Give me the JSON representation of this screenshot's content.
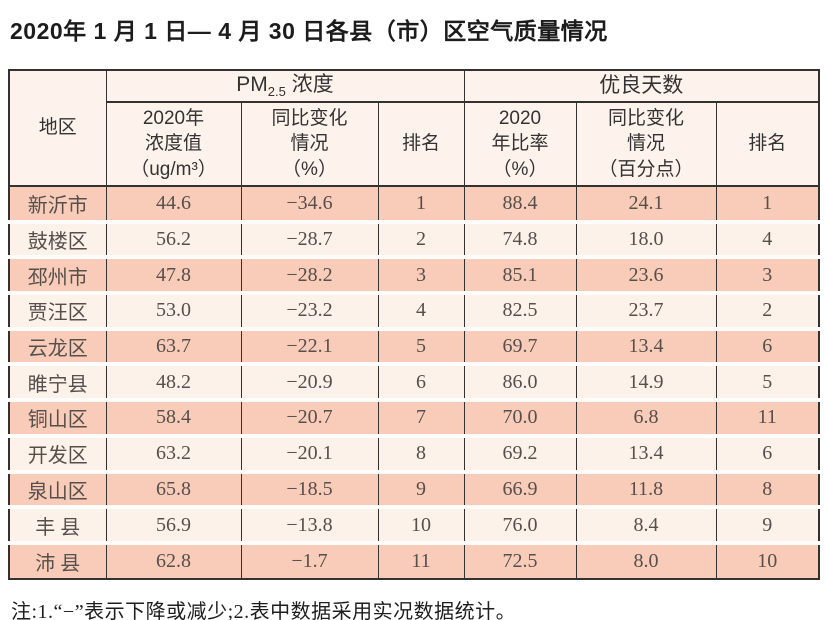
{
  "title": "2020年 1 月 1 日— 4 月 30 日各县（市）区空气质量情况",
  "table": {
    "region_header": "地区",
    "group_pm": {
      "base": "PM",
      "sub": "2.5",
      "rest": " 浓度"
    },
    "group_good": "优良天数",
    "sub_headers": {
      "pm_value": "2020年\n浓度值\n（ug/m³）",
      "pm_change": "同比变化\n情况\n（%）",
      "pm_rank": "排名",
      "good_ratio": "2020\n年比率\n（%）",
      "good_change": "同比变化\n情况\n（百分点）",
      "good_rank": "排名"
    },
    "rows": [
      {
        "region": "新沂市",
        "pm_value": "44.6",
        "pm_change": "−34.6",
        "pm_rank": "1",
        "good_ratio": "88.4",
        "good_change": "24.1",
        "good_rank": "1"
      },
      {
        "region": "鼓楼区",
        "pm_value": "56.2",
        "pm_change": "−28.7",
        "pm_rank": "2",
        "good_ratio": "74.8",
        "good_change": "18.0",
        "good_rank": "4"
      },
      {
        "region": "邳州市",
        "pm_value": "47.8",
        "pm_change": "−28.2",
        "pm_rank": "3",
        "good_ratio": "85.1",
        "good_change": "23.6",
        "good_rank": "3"
      },
      {
        "region": "贾汪区",
        "pm_value": "53.0",
        "pm_change": "−23.2",
        "pm_rank": "4",
        "good_ratio": "82.5",
        "good_change": "23.7",
        "good_rank": "2"
      },
      {
        "region": "云龙区",
        "pm_value": "63.7",
        "pm_change": "−22.1",
        "pm_rank": "5",
        "good_ratio": "69.7",
        "good_change": "13.4",
        "good_rank": "6"
      },
      {
        "region": "睢宁县",
        "pm_value": "48.2",
        "pm_change": "−20.9",
        "pm_rank": "6",
        "good_ratio": "86.0",
        "good_change": "14.9",
        "good_rank": "5"
      },
      {
        "region": "铜山区",
        "pm_value": "58.4",
        "pm_change": "−20.7",
        "pm_rank": "7",
        "good_ratio": "70.0",
        "good_change": "6.8",
        "good_rank": "11"
      },
      {
        "region": "开发区",
        "pm_value": "63.2",
        "pm_change": "−20.1",
        "pm_rank": "8",
        "good_ratio": "69.2",
        "good_change": "13.4",
        "good_rank": "6"
      },
      {
        "region": "泉山区",
        "pm_value": "65.8",
        "pm_change": "−18.5",
        "pm_rank": "9",
        "good_ratio": "66.9",
        "good_change": "11.8",
        "good_rank": "8"
      },
      {
        "region": "丰 县",
        "pm_value": "56.9",
        "pm_change": "−13.8",
        "pm_rank": "10",
        "good_ratio": "76.0",
        "good_change": "8.4",
        "good_rank": "9"
      },
      {
        "region": "沛 县",
        "pm_value": "62.8",
        "pm_change": "−1.7",
        "pm_rank": "11",
        "good_ratio": "72.5",
        "good_change": "8.0",
        "good_rank": "10"
      }
    ]
  },
  "footnote": "注:1.“−”表示下降或减少;2.表中数据采用实况数据统计。",
  "colors": {
    "row-salmon": "#f8ccb9",
    "row-light": "#fdf2ea",
    "header-bg": "#fdf3ec",
    "border-dark": "#343230",
    "gap-line": "#fffdfb",
    "text-data": "#564f4b",
    "text-header": "#333333",
    "text-title": "#1c1c1c"
  }
}
